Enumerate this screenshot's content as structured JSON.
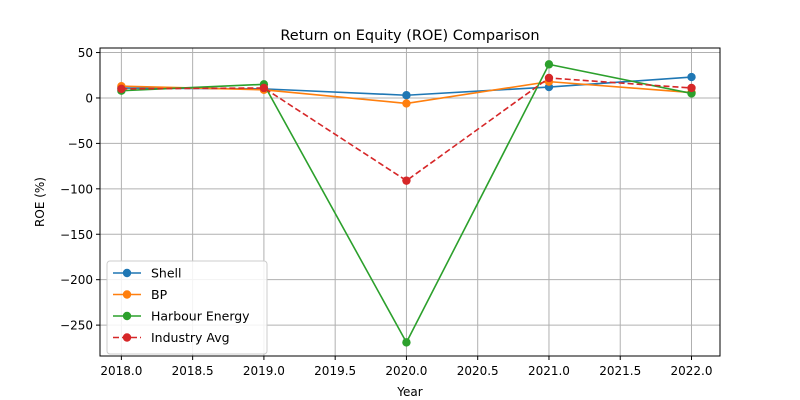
{
  "chart_data": {
    "type": "line",
    "title": "Return on Equity (ROE) Comparison",
    "xlabel": "Year",
    "ylabel": "ROE (%)",
    "x": [
      2018,
      2019,
      2020,
      2021,
      2022
    ],
    "xlim": [
      2017.85,
      2022.2
    ],
    "ylim": [
      -284,
      55
    ],
    "xticks": [
      2018.0,
      2018.5,
      2019.0,
      2019.5,
      2020.0,
      2020.5,
      2021.0,
      2021.5,
      2022.0
    ],
    "xtick_labels": [
      "2018.0",
      "2018.5",
      "2019.0",
      "2019.5",
      "2020.0",
      "2020.5",
      "2021.0",
      "2021.5",
      "2022.0"
    ],
    "yticks": [
      50,
      0,
      -50,
      -100,
      -150,
      -200,
      -250
    ],
    "ytick_labels": [
      "50",
      "0",
      "−50",
      "−100",
      "−150",
      "−200",
      "−250"
    ],
    "grid": true,
    "legend_position": "lower-left",
    "series": [
      {
        "name": "Shell",
        "color": "#1f77b4",
        "dashed": false,
        "values": [
          11,
          10,
          3,
          12,
          23
        ]
      },
      {
        "name": "BP",
        "color": "#ff7f0e",
        "dashed": false,
        "values": [
          13,
          9,
          -6,
          18,
          6
        ]
      },
      {
        "name": "Harbour Energy",
        "color": "#2ca02c",
        "dashed": false,
        "values": [
          8,
          15,
          -269,
          37,
          5
        ]
      },
      {
        "name": "Industry Avg",
        "color": "#d62728",
        "dashed": true,
        "values": [
          10,
          11,
          -91,
          22,
          11
        ]
      }
    ]
  }
}
